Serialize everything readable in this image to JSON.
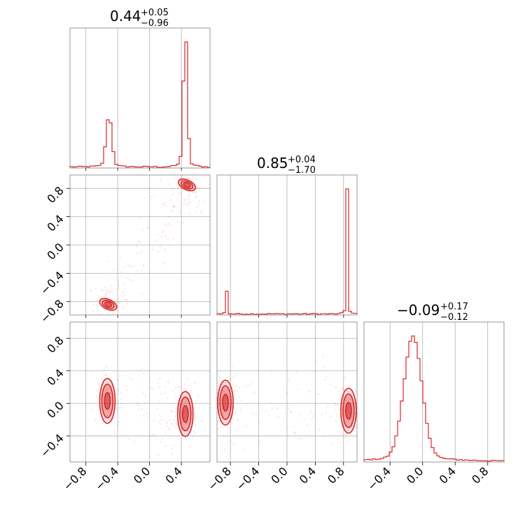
{
  "chart_data": {
    "type": "corner",
    "color": "#d62728",
    "parameters": [
      {
        "index": 0,
        "median": "0.44",
        "upper": "+0.05",
        "lower": "−0.96"
      },
      {
        "index": 1,
        "median": "0.85",
        "upper": "+0.04",
        "lower": "−1.70"
      },
      {
        "index": 2,
        "median": "−0.09",
        "upper": "+0.17",
        "lower": "−0.12"
      }
    ],
    "ranges": [
      [
        -1.0,
        0.76
      ],
      [
        -0.99,
        0.99
      ],
      [
        -0.72,
        1.0
      ]
    ],
    "ticks": {
      "p0": [
        -0.8,
        -0.4,
        0.0,
        0.4
      ],
      "p1": [
        -0.8,
        -0.4,
        0.0,
        0.4,
        0.8
      ],
      "p2": [
        -0.4,
        0.0,
        0.4,
        0.8
      ]
    },
    "tick_labels": {
      "p0": [
        "−0.8",
        "−0.4",
        "0.0",
        "0.4"
      ],
      "p1": [
        "−0.8",
        "−0.4",
        "0.0",
        "0.4",
        "0.8"
      ],
      "p2": [
        "−0.4",
        "0.0",
        "0.4",
        "0.8"
      ]
    },
    "histograms": [
      {
        "param": 0,
        "peaks": [
          {
            "center": -0.51,
            "width": 0.035,
            "height": 0.38
          },
          {
            "center": 0.45,
            "width": 0.025,
            "height": 1.0
          }
        ]
      },
      {
        "param": 1,
        "peaks": [
          {
            "center": -0.86,
            "width": 0.01,
            "height": 0.26
          },
          {
            "center": 0.85,
            "width": 0.012,
            "height": 1.0
          }
        ]
      },
      {
        "param": 2,
        "peaks": [
          {
            "center": -0.12,
            "width": 0.11,
            "height": 1.0
          }
        ]
      }
    ],
    "modes_2d": [
      {
        "x_param": 0,
        "y_param": 1,
        "centers": [
          [
            0.47,
            0.85
          ],
          [
            -0.52,
            -0.84
          ]
        ]
      },
      {
        "x_param": 0,
        "y_param": 2,
        "centers": [
          [
            -0.53,
            0.03
          ],
          [
            0.45,
            -0.13
          ]
        ]
      },
      {
        "x_param": 1,
        "y_param": 2,
        "centers": [
          [
            -0.87,
            0.01
          ],
          [
            0.87,
            -0.09
          ]
        ]
      }
    ]
  }
}
